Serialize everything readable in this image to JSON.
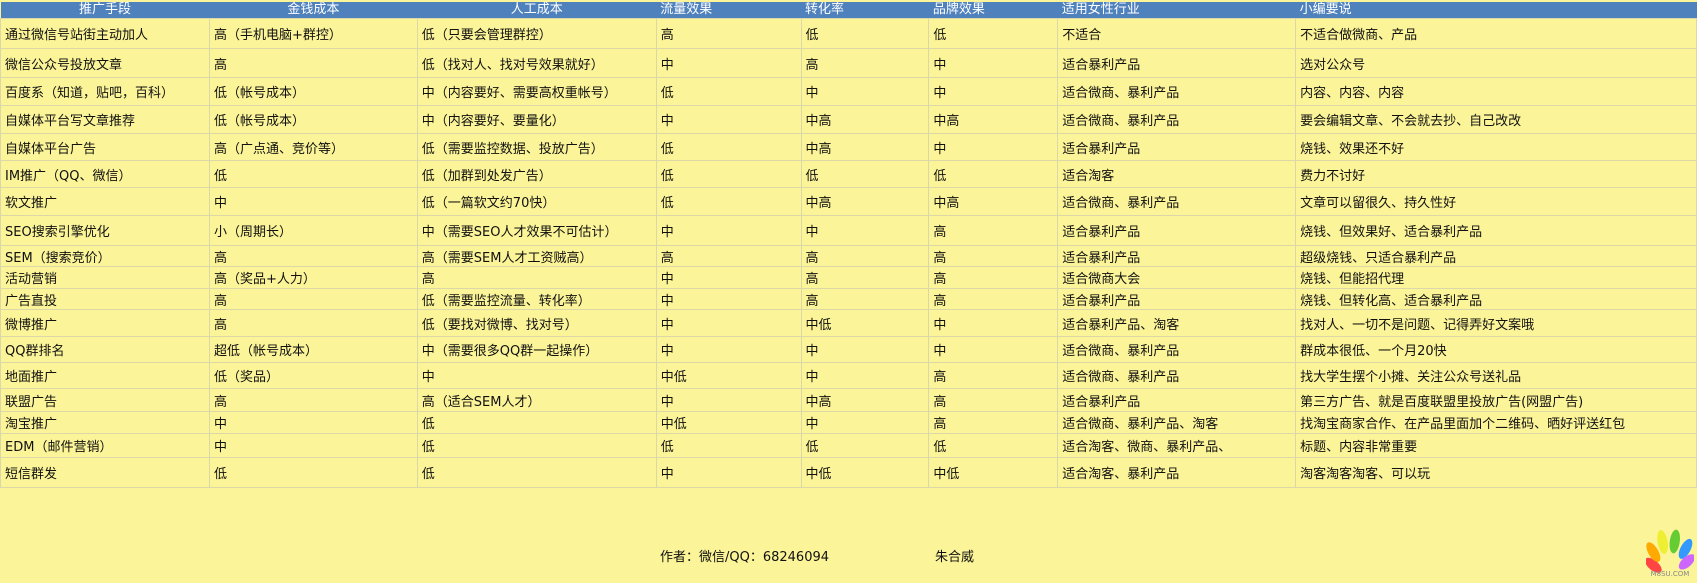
{
  "columns": [
    "推广手段",
    "金钱成本",
    "人工成本",
    "流量效果",
    "转化率",
    "品牌效果",
    "适用女性行业",
    "小编要说"
  ],
  "rows": [
    [
      "通过微信号站街主动加人",
      "高（手机电脑+群控）",
      "低（只要会管理群控）",
      "高",
      "低",
      "低",
      "不适合",
      "不适合做微商、产品"
    ],
    [
      "微信公众号投放文章",
      "高",
      "低（找对人、找对号效果就好）",
      "中",
      "高",
      "中",
      "适合暴利产品",
      "选对公众号"
    ],
    [
      "百度系（知道，贴吧，百科）",
      "低（帐号成本）",
      "中（内容要好、需要高权重帐号）",
      "低",
      "中",
      "中",
      "适合微商、暴利产品",
      "内容、内容、内容"
    ],
    [
      "自媒体平台写文章推荐",
      "低（帐号成本）",
      "中（内容要好、要量化）",
      "中",
      "中高",
      "中高",
      "适合微商、暴利产品",
      "要会编辑文章、不会就去抄、自己改改"
    ],
    [
      "自媒体平台广告",
      "高（广点通、竞价等）",
      "低（需要监控数据、投放广告）",
      "低",
      "中高",
      "中",
      "适合暴利产品",
      "烧钱、效果还不好"
    ],
    [
      "IM推广（QQ、微信）",
      "低",
      "低（加群到处发广告）",
      "低",
      "低",
      "低",
      "适合淘客",
      "费力不讨好"
    ],
    [
      "软文推广",
      "中",
      "低（一篇软文约70快）",
      "低",
      "中高",
      "中高",
      "适合微商、暴利产品",
      "文章可以留很久、持久性好"
    ],
    [
      "SEO搜索引擎优化",
      "小（周期长）",
      "中（需要SEO人才效果不可估计）",
      "中",
      "中",
      "高",
      "适合暴利产品",
      "烧钱、但效果好、适合暴利产品"
    ],
    [
      "SEM（搜索竞价）",
      "高",
      "高（需要SEM人才工资贼高）",
      "高",
      "高",
      "高",
      "适合暴利产品",
      "超级烧钱、只适合暴利产品"
    ],
    [
      "活动营销",
      "高（奖品+人力）",
      "高",
      "中",
      "高",
      "高",
      "适合微商大会",
      "烧钱、但能招代理"
    ],
    [
      "广告直投",
      "高",
      "低（需要监控流量、转化率）",
      "中",
      "高",
      "高",
      "适合暴利产品",
      "烧钱、但转化高、适合暴利产品"
    ],
    [
      "微博推广",
      "高",
      "低（要找对微博、找对号）",
      "中",
      "中低",
      "中",
      "适合暴利产品、淘客",
      "找对人、一切不是问题、记得弄好文案哦"
    ],
    [
      "QQ群排名",
      "超低（帐号成本）",
      "中（需要很多QQ群一起操作）",
      "中",
      "中",
      "中",
      "适合微商、暴利产品",
      "群成本很低、一个月20快"
    ],
    [
      "地面推广",
      "低（奖品）",
      "中",
      "中低",
      "中",
      "高",
      "适合微商、暴利产品",
      "找大学生摆个小摊、关注公众号送礼品"
    ],
    [
      "联盟广告",
      "高",
      "高（适合SEM人才）",
      "中",
      "中高",
      "高",
      "适合暴利产品",
      "第三方广告、就是百度联盟里投放广告(网盟广告)"
    ],
    [
      "淘宝推广",
      "中",
      "低",
      "中低",
      "中",
      "高",
      "适合微商、暴利产品、淘客",
      "找淘宝商家合作、在产品里面加个二维码、晒好评送红包"
    ],
    [
      "EDM（邮件营销）",
      "中",
      "低",
      "低",
      "低",
      "低",
      "适合淘客、微商、暴利产品、",
      "标题、内容非常重要"
    ],
    [
      "短信群发",
      "低",
      "低",
      "中",
      "中低",
      "中低",
      "适合淘客、暴利产品",
      "淘客淘客淘客、可以玩"
    ]
  ],
  "footer": {
    "author": "作者：微信/QQ：68246094",
    "name": "朱合威"
  },
  "logo": {
    "text": "M8SU.COM"
  },
  "colors": {
    "header_bg": "#4f81bd",
    "body_bg": "#fbf498"
  }
}
